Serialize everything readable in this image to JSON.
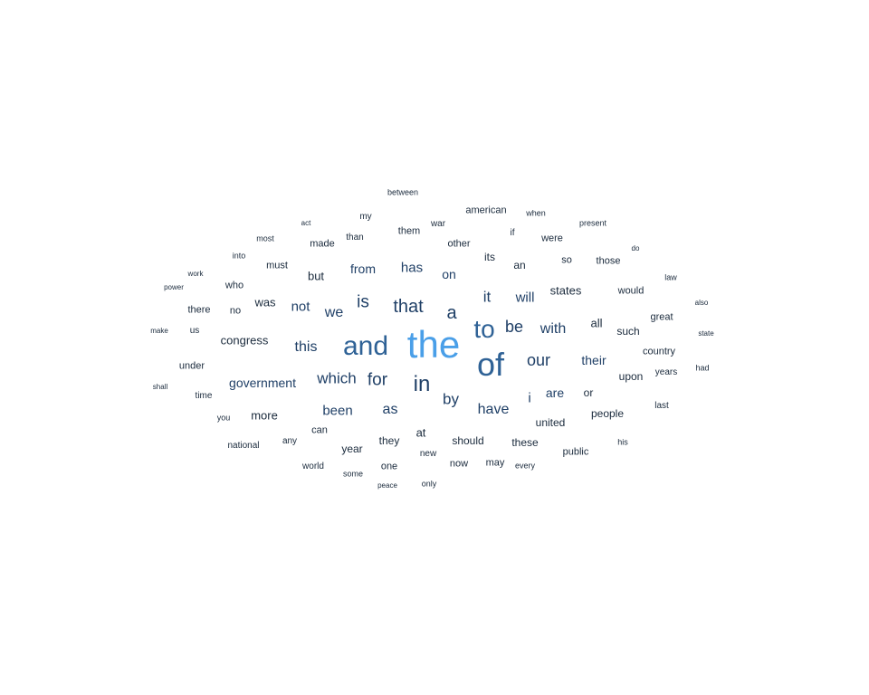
{
  "colors": {
    "top": "#4a9fe8",
    "large": "#2f6296",
    "medium": "#1f3f66",
    "small": "#1a2a3c"
  },
  "words": [
    "the",
    "of",
    "and",
    "to",
    "in",
    "that",
    "a",
    "is",
    "our",
    "for",
    "be",
    "which",
    "it",
    "with",
    "have",
    "by",
    "as",
    "been",
    "this",
    "we",
    "government",
    "not",
    "has",
    "will",
    "from",
    "congress",
    "are",
    "their",
    "states",
    "was",
    "on",
    "i",
    "more",
    "united",
    "people",
    "should",
    "at",
    "year",
    "these",
    "all",
    "they",
    "but",
    "made",
    "them",
    "upon",
    "or",
    "such",
    "would",
    "its",
    "an",
    "those",
    "great",
    "must",
    "so",
    "were",
    "other",
    "can",
    "public",
    "one",
    "who",
    "country",
    "war",
    "american",
    "than",
    "may",
    "new",
    "now",
    "under",
    "there",
    "no",
    "years",
    "any",
    "last",
    "my",
    "time",
    "national",
    "us",
    "between",
    "world",
    "some",
    "every",
    "only",
    "law",
    "most",
    "his",
    "present",
    "into",
    "you",
    "when",
    "had",
    "if",
    "power",
    "work",
    "act",
    "do",
    "also",
    "state",
    "make",
    "shall",
    "peace"
  ]
}
